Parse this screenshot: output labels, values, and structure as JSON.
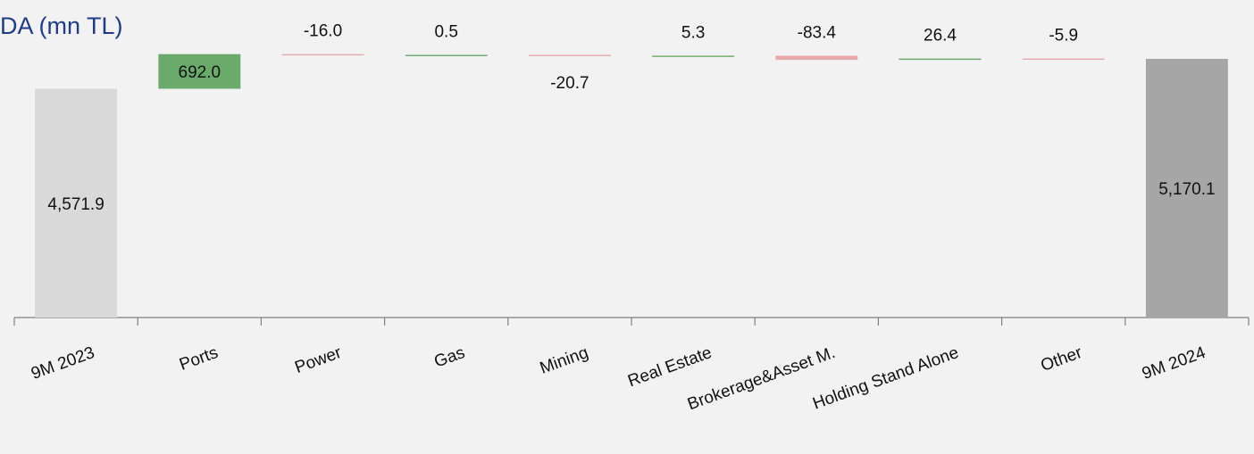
{
  "title": "DA (mn TL)",
  "chart_data": {
    "type": "bar",
    "subtype": "waterfall",
    "title": "DA (mn TL)",
    "categories": [
      "9M 2023",
      "Ports",
      "Power",
      "Gas",
      "Mining",
      "Real Estate",
      "Brokerage&Asset M.",
      "Holding Stand Alone",
      "Other",
      "9M 2024"
    ],
    "values": [
      4571.9,
      692.0,
      -16.0,
      0.5,
      -20.7,
      5.3,
      -83.4,
      26.4,
      -5.9,
      5170.1
    ],
    "labels": [
      "4,571.9",
      "692.0",
      "-16.0",
      "0.5",
      "-20.7",
      "5.3",
      "-83.4",
      "26.4",
      "-5.9",
      "5,170.1"
    ],
    "kinds": [
      "total",
      "delta",
      "delta",
      "delta",
      "delta",
      "delta",
      "delta",
      "delta",
      "delta",
      "total"
    ],
    "colors": {
      "start_total": "#d9d9d9",
      "end_total": "#a6a6a6",
      "increase": "#6aaa6a",
      "decrease": "#e8a8a8"
    },
    "xlabel": "",
    "ylabel": "",
    "grid": false,
    "legend": "none"
  }
}
